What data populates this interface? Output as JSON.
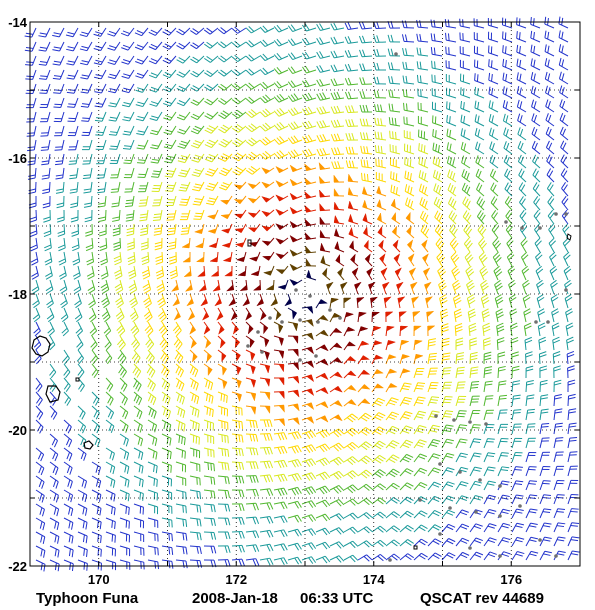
{
  "map": {
    "lon_range": [
      169,
      177
    ],
    "lat_range": [
      -22,
      -14
    ],
    "x_ticks": [
      "170",
      "172",
      "174",
      "176"
    ],
    "y_ticks": [
      "-14",
      "-16",
      "-18",
      "-20",
      "-22"
    ],
    "x_tick_values": [
      170,
      172,
      174,
      176
    ],
    "y_tick_values": [
      -14,
      -16,
      -18,
      -20,
      -22
    ],
    "grid": "dotted",
    "storm_center": {
      "lon": 173.0,
      "lat": -18.0
    },
    "rotation": "clockwise",
    "wind_colors": [
      "#2233cc",
      "#1a9a9a",
      "#52b830",
      "#d8e820",
      "#ffd800",
      "#ff9900",
      "#e02000",
      "#800000",
      "#604000",
      "#00004a"
    ],
    "rain_flag_color": "#707070",
    "land_color": "#000000"
  },
  "caption": {
    "name": "Typhoon Funa",
    "date": "2008-Jan-18",
    "time": "06:33 UTC",
    "sensor": "QSCAT rev 44689"
  }
}
